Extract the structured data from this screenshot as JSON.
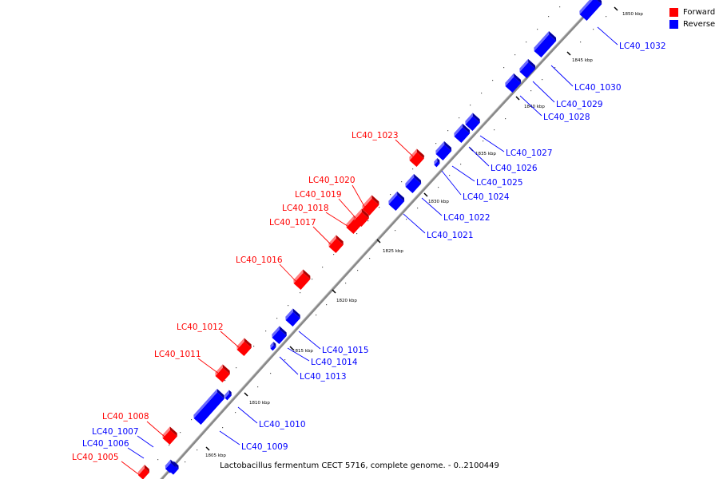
{
  "legend": {
    "forward": {
      "label": "Forward",
      "color": "#ff0000"
    },
    "reverse": {
      "label": "Reverse",
      "color": "#0000ff"
    }
  },
  "caption": "Lactobacillus fermentum CECT 5716, complete genome. - 0..2100449",
  "axis": {
    "unit": "kbp",
    "labels": [
      "1805 kbp",
      "1810 kbp",
      "1815 kbp",
      "1820 kbp",
      "1825 kbp",
      "1830 kbp",
      "1835 kbp",
      "1840 kbp",
      "1845 kbp",
      "1850 kbp"
    ]
  },
  "genes": [
    {
      "name": "LC40_1005",
      "strand": "forward"
    },
    {
      "name": "LC40_1006",
      "strand": "reverse"
    },
    {
      "name": "LC40_1007",
      "strand": "reverse"
    },
    {
      "name": "LC40_1008",
      "strand": "forward"
    },
    {
      "name": "LC40_1009",
      "strand": "reverse"
    },
    {
      "name": "LC40_1010",
      "strand": "reverse"
    },
    {
      "name": "LC40_1011",
      "strand": "forward"
    },
    {
      "name": "LC40_1012",
      "strand": "forward"
    },
    {
      "name": "LC40_1013",
      "strand": "reverse"
    },
    {
      "name": "LC40_1014",
      "strand": "reverse"
    },
    {
      "name": "LC40_1015",
      "strand": "reverse"
    },
    {
      "name": "LC40_1016",
      "strand": "forward"
    },
    {
      "name": "LC40_1017",
      "strand": "forward"
    },
    {
      "name": "LC40_1018",
      "strand": "forward"
    },
    {
      "name": "LC40_1019",
      "strand": "forward"
    },
    {
      "name": "LC40_1020",
      "strand": "forward"
    },
    {
      "name": "LC40_1021",
      "strand": "reverse"
    },
    {
      "name": "LC40_1022",
      "strand": "reverse"
    },
    {
      "name": "LC40_1023",
      "strand": "forward"
    },
    {
      "name": "LC40_1024",
      "strand": "reverse"
    },
    {
      "name": "LC40_1025",
      "strand": "reverse"
    },
    {
      "name": "LC40_1026",
      "strand": "reverse"
    },
    {
      "name": "LC40_1027",
      "strand": "reverse"
    },
    {
      "name": "LC40_1028",
      "strand": "reverse"
    },
    {
      "name": "LC40_1029",
      "strand": "reverse"
    },
    {
      "name": "LC40_1030",
      "strand": "reverse"
    },
    {
      "name": "LC40_1032",
      "strand": "reverse"
    }
  ]
}
